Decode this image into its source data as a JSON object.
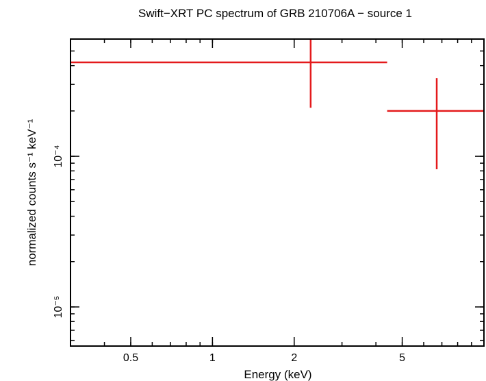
{
  "chart_data": {
    "type": "scatter",
    "title": "Swift−XRT PC spectrum of GRB 210706A − source 1",
    "xlabel": "Energy (keV)",
    "ylabel": "normalized counts s⁻¹ keV⁻¹",
    "x_scale": "log",
    "y_scale": "log",
    "xlim": [
      0.3,
      10
    ],
    "ylim": [
      5.5e-06,
      0.0006
    ],
    "grid": false,
    "x_ticks": [
      {
        "value": 0.5,
        "label": "0.5"
      },
      {
        "value": 1,
        "label": "1"
      },
      {
        "value": 2,
        "label": "2"
      },
      {
        "value": 5,
        "label": "5"
      }
    ],
    "y_ticks": [
      {
        "value": 1e-05,
        "label": "10⁻⁵"
      },
      {
        "value": 0.0001,
        "label": "10⁻⁴"
      }
    ],
    "series": [
      {
        "color": "#e41a1c",
        "points": [
          {
            "x": 2.3,
            "xlow": 0.3,
            "xhigh": 4.4,
            "y": 0.00042,
            "ylow": 0.00021,
            "yhigh": 0.0006
          },
          {
            "x": 6.7,
            "xlow": 4.4,
            "xhigh": 10,
            "y": 0.0002,
            "ylow": 8.2e-05,
            "yhigh": 0.00033
          }
        ]
      }
    ]
  }
}
